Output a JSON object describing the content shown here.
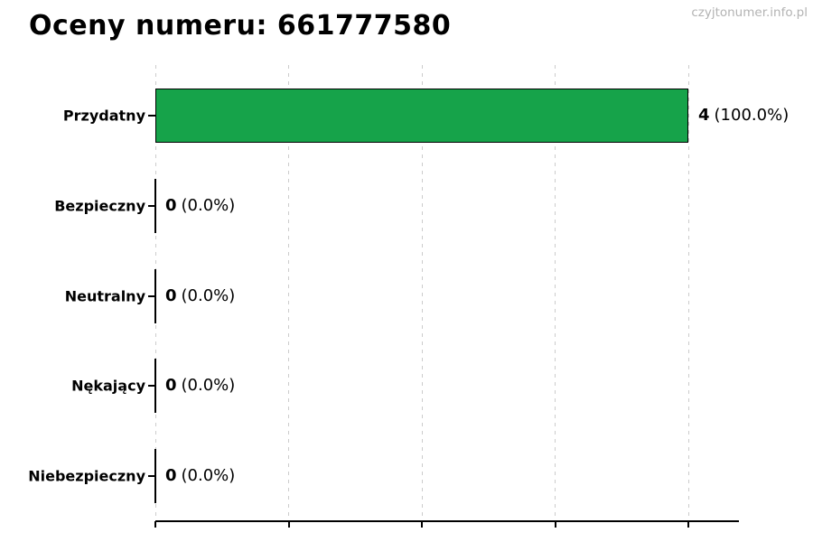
{
  "header": {
    "title": "Oceny numeru: 661777580",
    "watermark": "czyjtonumer.info.pl"
  },
  "colors": {
    "bar_fill": "#16a34a",
    "bar_edge": "#000000",
    "gridline": "#cccccc",
    "axis": "#000000",
    "watermark_text": "#b3b3b3",
    "label_text": "#000000"
  },
  "chart_data": {
    "type": "bar",
    "orientation": "horizontal",
    "title": "Oceny numeru: 661777580",
    "categories": [
      "Przydatny",
      "Bezpieczny",
      "Neutralny",
      "Nękający",
      "Niebezpieczny"
    ],
    "values": [
      4,
      0,
      0,
      0,
      0
    ],
    "percent_labels": [
      "(100.0%)",
      "(0.0%)",
      "(0.0%)",
      "(0.0%)",
      "(0.0%)"
    ],
    "bar_color": "#16a34a",
    "xlim": [
      0,
      4.38
    ],
    "xticks": [
      0,
      1,
      2,
      3,
      4
    ],
    "x_tick_labels_visible": false,
    "grid": true,
    "legend": false
  }
}
